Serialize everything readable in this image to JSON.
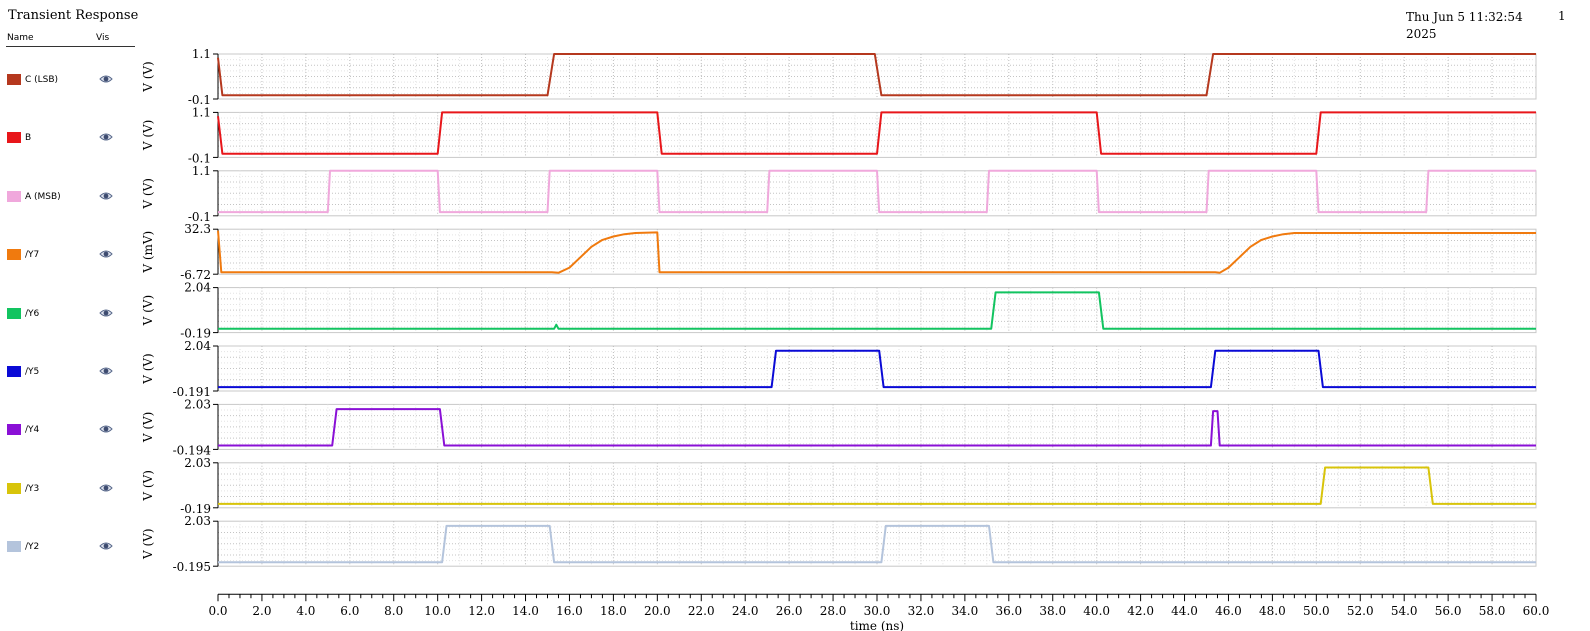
{
  "header": {
    "title": "Transient Response",
    "datetime_line1": "Thu Jun 5 11:32:54",
    "datetime_line2": "2025",
    "page": "1"
  },
  "legend": {
    "name_header": "Name",
    "vis_header": "Vis",
    "eye_icon": "eye-icon"
  },
  "chart_data": {
    "type": "line",
    "title": "Transient Response",
    "xlabel": "time (ns)",
    "xlim": [
      0.0,
      60.0
    ],
    "x_ticks": [
      "0.0",
      "2.0",
      "4.0",
      "6.0",
      "8.0",
      "10.0",
      "12.0",
      "14.0",
      "16.0",
      "18.0",
      "20.0",
      "22.0",
      "24.0",
      "26.0",
      "28.0",
      "30.0",
      "32.0",
      "34.0",
      "36.0",
      "38.0",
      "40.0",
      "42.0",
      "44.0",
      "46.0",
      "48.0",
      "50.0",
      "52.0",
      "54.0",
      "56.0",
      "58.0",
      "60.0"
    ],
    "grid": true,
    "series": [
      {
        "name": "C (LSB)",
        "color": "#b5381e",
        "ylabel": "V (V)",
        "ymax_label": "1.1",
        "ymin_label": "-0.1",
        "ylim": [
          -0.1,
          1.1
        ],
        "x": [
          0.0,
          0.2,
          15.0,
          15.3,
          29.9,
          30.2,
          45.0,
          45.3,
          60.0
        ],
        "y": [
          1.0,
          0.0,
          0.0,
          1.1,
          1.1,
          0.0,
          0.0,
          1.1,
          1.1
        ]
      },
      {
        "name": "B",
        "color": "#e8161a",
        "ylabel": "V (V)",
        "ymax_label": "1.1",
        "ymin_label": "-0.1",
        "ylim": [
          -0.1,
          1.1
        ],
        "x": [
          0.0,
          0.2,
          10.0,
          10.2,
          20.0,
          20.2,
          30.0,
          30.2,
          40.0,
          40.2,
          50.0,
          50.2,
          60.0
        ],
        "y": [
          1.0,
          0.0,
          0.0,
          1.1,
          1.1,
          0.0,
          0.0,
          1.1,
          1.1,
          0.0,
          0.0,
          1.1,
          1.1
        ]
      },
      {
        "name": "A (MSB)",
        "color": "#f0a8dc",
        "ylabel": "V (V)",
        "ymax_label": "1.1",
        "ymin_label": "-0.1",
        "ylim": [
          -0.1,
          1.1
        ],
        "x": [
          0.0,
          5.0,
          5.1,
          10.0,
          10.1,
          15.0,
          15.1,
          20.0,
          20.1,
          25.0,
          25.1,
          30.0,
          30.1,
          35.0,
          35.1,
          40.0,
          40.1,
          45.0,
          45.1,
          50.0,
          50.1,
          55.0,
          55.1,
          60.0
        ],
        "y": [
          0.0,
          0.0,
          1.1,
          1.1,
          0.0,
          0.0,
          1.1,
          1.1,
          0.0,
          0.0,
          1.1,
          1.1,
          0.0,
          0.0,
          1.1,
          1.1,
          0.0,
          0.0,
          1.1,
          1.1,
          0.0,
          0.0,
          1.1,
          1.1
        ]
      },
      {
        "name": "/Y7",
        "color": "#f07a0e",
        "ylabel": "V (mV)",
        "ymax_label": "32.3",
        "ymin_label": "-6.72",
        "ylim": [
          -6.72,
          32.3
        ],
        "x": [
          0.0,
          0.15,
          15.2,
          15.5,
          16.0,
          16.5,
          17.0,
          17.5,
          18.0,
          18.5,
          19.0,
          20.0,
          20.1,
          20.2,
          45.4,
          45.6,
          46.0,
          46.5,
          47.0,
          47.5,
          48.0,
          48.5,
          49.0,
          60.0
        ],
        "y": [
          31.0,
          -5.0,
          -5.0,
          -5.5,
          -1.0,
          8.0,
          17.0,
          23.0,
          26.0,
          28.0,
          29.0,
          29.5,
          -5.0,
          -5.0,
          -5.0,
          -5.5,
          -1.0,
          8.0,
          17.0,
          23.0,
          26.0,
          28.0,
          29.0,
          29.0
        ]
      },
      {
        "name": "/Y6",
        "color": "#12c460",
        "ylabel": "V (V)",
        "ymax_label": "2.04",
        "ymin_label": "-0.19",
        "ylim": [
          -0.19,
          2.04
        ],
        "x": [
          0.0,
          15.3,
          15.4,
          15.5,
          35.2,
          35.4,
          35.6,
          40.0,
          40.1,
          40.3,
          60.0
        ],
        "y": [
          0.0,
          0.0,
          0.2,
          0.0,
          0.0,
          1.8,
          1.8,
          1.8,
          1.8,
          0.0,
          0.0
        ]
      },
      {
        "name": "/Y5",
        "color": "#0a0ad6",
        "ylabel": "V (V)",
        "ymax_label": "2.04",
        "ymin_label": "-0.191",
        "ylim": [
          -0.191,
          2.04
        ],
        "x": [
          0.0,
          25.2,
          25.4,
          25.6,
          30.0,
          30.1,
          30.3,
          45.2,
          45.4,
          45.6,
          50.0,
          50.1,
          50.3,
          60.0
        ],
        "y": [
          0.0,
          0.0,
          1.8,
          1.8,
          1.8,
          1.8,
          0.0,
          0.0,
          1.8,
          1.8,
          1.8,
          1.8,
          0.0,
          0.0
        ]
      },
      {
        "name": "/Y4",
        "color": "#8a10d6",
        "ylabel": "V (V)",
        "ymax_label": "2.03",
        "ymin_label": "-0.194",
        "ylim": [
          -0.194,
          2.03
        ],
        "x": [
          0.0,
          5.2,
          5.4,
          5.6,
          10.0,
          10.1,
          10.3,
          45.2,
          45.3,
          45.4,
          45.5,
          45.6,
          60.0
        ],
        "y": [
          0.0,
          0.0,
          1.8,
          1.8,
          1.8,
          1.8,
          0.0,
          0.0,
          1.7,
          1.7,
          1.7,
          0.0,
          0.0
        ]
      },
      {
        "name": "/Y3",
        "color": "#d8c40a",
        "ylabel": "V (V)",
        "ymax_label": "2.03",
        "ymin_label": "-0.19",
        "ylim": [
          -0.19,
          2.03
        ],
        "x": [
          0.0,
          50.2,
          50.4,
          50.6,
          55.0,
          55.1,
          55.3,
          60.0
        ],
        "y": [
          0.0,
          0.0,
          1.8,
          1.8,
          1.8,
          1.8,
          0.0,
          0.0
        ]
      },
      {
        "name": "/Y2",
        "color": "#b4c4dc",
        "ylabel": "V (V)",
        "ymax_label": "2.03",
        "ymin_label": "-0.195",
        "ylim": [
          -0.195,
          2.03
        ],
        "x": [
          0.0,
          10.2,
          10.4,
          10.6,
          15.0,
          15.1,
          15.3,
          30.2,
          30.4,
          30.6,
          35.0,
          35.1,
          35.3,
          60.0
        ],
        "y": [
          0.0,
          0.0,
          1.8,
          1.8,
          1.8,
          1.8,
          0.0,
          0.0,
          1.8,
          1.8,
          1.8,
          1.8,
          0.0,
          0.0
        ]
      }
    ]
  }
}
